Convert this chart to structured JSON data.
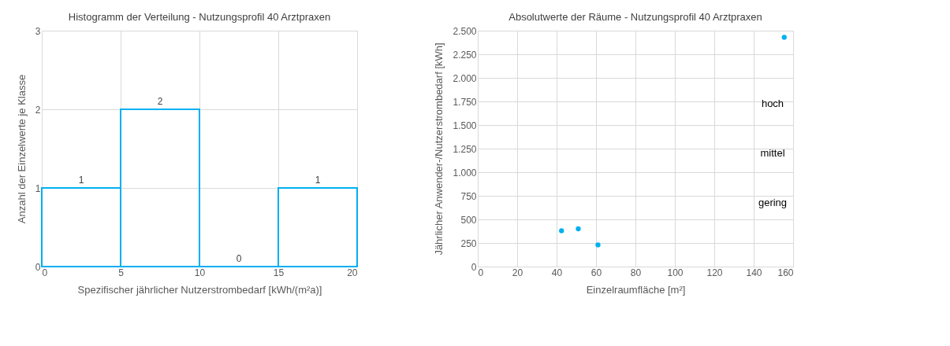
{
  "chart_data": [
    {
      "type": "histogram",
      "title": "Histogramm der Verteilung - Nutzungsprofil 40 Arztpraxen",
      "xlabel": "Spezifischer jährlicher Nutzerstrombedarf [kWh/(m²a)]",
      "ylabel": "Anzahl der Einzelwerte je Klasse",
      "bins": [
        0,
        5,
        10,
        15,
        20
      ],
      "values": [
        1,
        2,
        0,
        1
      ],
      "color": "#00b0f0",
      "data_labels": true,
      "xlim": [
        0,
        20
      ],
      "xticks": [
        0,
        5,
        10,
        15,
        20
      ],
      "ylim": [
        0,
        3
      ],
      "yticks": [
        0,
        1,
        2,
        3
      ],
      "grid": true
    },
    {
      "type": "scatter",
      "title": "Absolutwerte der Räume - Nutzungsprofil 40 Arztpraxen",
      "xlabel": "Einzelraumfläche [m²]",
      "ylabel": "Jährlicher Anwender-/Nutzerstrombedarf [kWh]",
      "x": [
        42.5,
        51,
        61,
        155.5
      ],
      "values": [
        380,
        400,
        230,
        2430
      ],
      "color": "#00b0f0",
      "marker": "circle",
      "xlim": [
        0,
        160
      ],
      "xticks": [
        0,
        20,
        40,
        60,
        80,
        100,
        120,
        140,
        160
      ],
      "ylim": [
        0,
        2500
      ],
      "yticks": [
        0,
        250,
        500,
        750,
        {
          "value": 1000,
          "label": "1.000"
        },
        {
          "value": 1250,
          "label": "1.250"
        },
        {
          "value": 1500,
          "label": "1.500"
        },
        {
          "value": 1750,
          "label": "1.750"
        },
        {
          "value": 2000,
          "label": "2.000"
        },
        {
          "value": 2250,
          "label": "2.250"
        },
        {
          "value": 2500,
          "label": "2.500"
        }
      ],
      "annotations": [
        "hoch",
        "mittel",
        "gering"
      ],
      "grid": true
    }
  ]
}
